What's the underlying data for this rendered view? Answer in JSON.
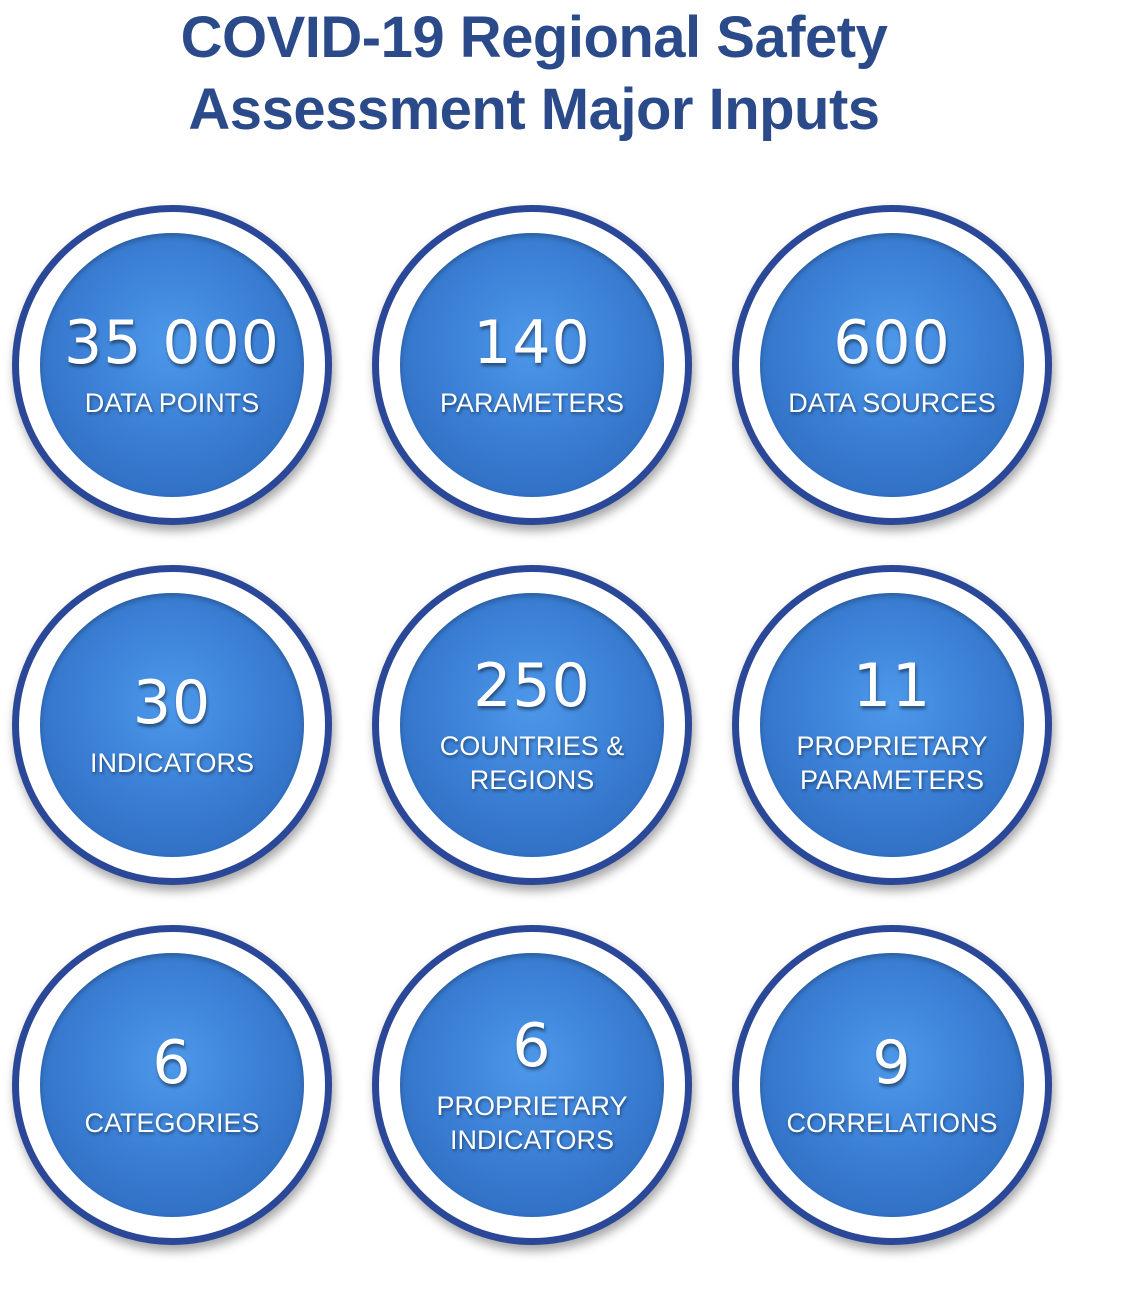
{
  "title": {
    "line1": "COVID-19 Regional Safety",
    "line2": "Assessment Major Inputs"
  },
  "items": [
    {
      "value": "35 000",
      "label": [
        "DATA POINTS"
      ]
    },
    {
      "value": "140",
      "label": [
        "PARAMETERS"
      ]
    },
    {
      "value": "600",
      "label": [
        "DATA SOURCES"
      ]
    },
    {
      "value": "30",
      "label": [
        "INDICATORS"
      ]
    },
    {
      "value": "250",
      "label": [
        "COUNTRIES &",
        "REGIONS"
      ]
    },
    {
      "value": "11",
      "label": [
        "PROPRIETARY",
        "PARAMETERS"
      ]
    },
    {
      "value": "6",
      "label": [
        "CATEGORIES"
      ]
    },
    {
      "value": "6",
      "label": [
        "PROPRIETARY",
        "INDICATORS"
      ]
    },
    {
      "value": "9",
      "label": [
        "CORRELATIONS"
      ]
    }
  ],
  "colors": {
    "title": "#2a4a8a",
    "ring": "#2b4898",
    "fill": "#3b80d6",
    "text": "#ffffff"
  }
}
